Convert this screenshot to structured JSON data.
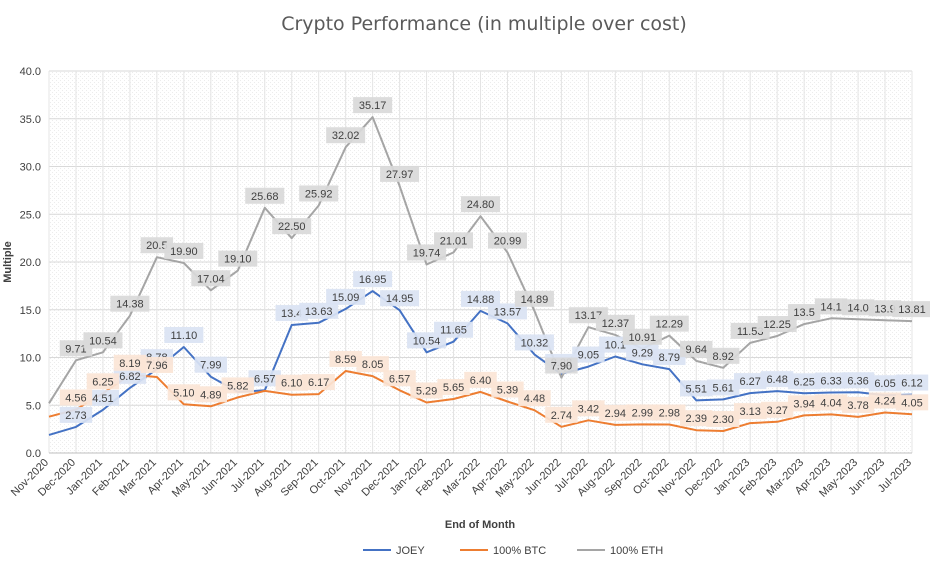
{
  "chart_data": {
    "type": "line",
    "title": "Crypto Performance (in multiple over cost)",
    "xlabel": "End of Month",
    "ylabel": "Multiple",
    "ylim": [
      0,
      40
    ],
    "yticks": [
      "0.0",
      "5.0",
      "10.0",
      "15.0",
      "20.0",
      "25.0",
      "30.0",
      "35.0",
      "40.0"
    ],
    "grid": true,
    "legend_position": "bottom",
    "categories": [
      "Nov-2020",
      "Dec-2020",
      "Jan-2021",
      "Feb-2021",
      "Mar-2021",
      "Apr-2021",
      "May-2021",
      "Jun-2021",
      "Jul-2021",
      "Aug-2021",
      "Sep-2021",
      "Oct-2021",
      "Nov-2021",
      "Dec-2021",
      "Jan-2022",
      "Feb-2022",
      "Mar-2022",
      "Apr-2022",
      "May-2022",
      "Jun-2022",
      "Jul-2022",
      "Aug-2022",
      "Sep-2022",
      "Oct-2022",
      "Nov-2022",
      "Dec-2022",
      "Jan-2023",
      "Feb-2023",
      "Mar-2023",
      "Apr-2023",
      "May-2023",
      "Jun-2023",
      "Jul-2023"
    ],
    "series": [
      {
        "name": "JOEY",
        "color": "#4472c4",
        "label_bg": "#dae3f3",
        "values": [
          1.9,
          2.73,
          4.51,
          6.82,
          8.78,
          11.1,
          7.99,
          6.4,
          6.57,
          13.4,
          13.63,
          15.09,
          16.95,
          14.95,
          10.54,
          11.65,
          14.88,
          13.57,
          10.32,
          8.28,
          9.05,
          10.1,
          9.29,
          8.79,
          5.51,
          5.61,
          6.27,
          6.48,
          6.25,
          6.33,
          6.36,
          6.05,
          6.12
        ],
        "labels": [
          "",
          "2.73",
          "4.51",
          "6.82",
          "8.78",
          "11.10",
          "7.99",
          "",
          "6.57",
          "13.4",
          "13.63",
          "15.09",
          "16.95",
          "14.95",
          "10.54",
          "11.65",
          "14.88",
          "13.57",
          "10.32",
          "8.28",
          "9.05",
          "10.1",
          "9.29",
          "8.79",
          "5.51",
          "5.61",
          "6.27",
          "6.48",
          "6.25",
          "6.33",
          "6.36",
          "6.05",
          "6.12"
        ]
      },
      {
        "name": "100% BTC",
        "color": "#ed7d31",
        "label_bg": "#fbe5d6",
        "values": [
          3.8,
          4.56,
          6.25,
          8.19,
          7.96,
          5.1,
          4.89,
          5.82,
          6.5,
          6.1,
          6.17,
          8.59,
          8.05,
          6.57,
          5.29,
          5.65,
          6.4,
          5.39,
          4.48,
          2.74,
          3.42,
          2.94,
          2.99,
          2.98,
          2.39,
          2.3,
          3.13,
          3.27,
          3.94,
          4.04,
          3.78,
          4.24,
          4.05
        ],
        "labels": [
          "",
          "4.56",
          "6.25",
          "8.19",
          "7.96",
          "5.10",
          "4.89",
          "5.82",
          "",
          "6.10",
          "6.17",
          "8.59",
          "8.05",
          "6.57",
          "5.29",
          "5.65",
          "6.40",
          "5.39",
          "4.48",
          "2.74",
          "3.42",
          "2.94",
          "2.99",
          "2.98",
          "2.39",
          "2.30",
          "3.13",
          "3.27",
          "3.94",
          "4.04",
          "3.78",
          "4.24",
          "4.05"
        ]
      },
      {
        "name": "100% ETH",
        "color": "#a5a5a5",
        "label_bg": "#d9d9d9",
        "values": [
          5.2,
          9.71,
          10.54,
          14.38,
          20.5,
          19.9,
          17.04,
          19.1,
          25.68,
          22.5,
          25.92,
          32.02,
          35.17,
          27.97,
          19.74,
          21.01,
          24.8,
          20.99,
          14.89,
          7.9,
          13.17,
          12.37,
          10.91,
          12.29,
          9.64,
          8.92,
          11.53,
          12.25,
          13.5,
          14.1,
          14.0,
          13.9,
          13.81
        ],
        "labels": [
          "",
          "9.71",
          "10.54",
          "14.38",
          "20.5",
          "19.90",
          "17.04",
          "19.10",
          "25.68",
          "22.50",
          "25.92",
          "32.02",
          "35.17",
          "27.97",
          "19.74",
          "21.01",
          "24.80",
          "20.99",
          "14.89",
          "7.90",
          "13.17",
          "12.37",
          "10.91",
          "12.29",
          "9.64",
          "8.92",
          "11.53",
          "12.25",
          "13.5",
          "14.1",
          "14.0",
          "13.9",
          "13.81"
        ]
      }
    ]
  }
}
